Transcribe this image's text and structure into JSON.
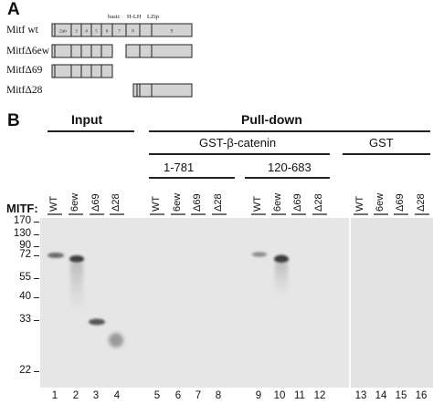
{
  "panel_a": {
    "letter": "A",
    "domain_labels": [
      "basic",
      "H-LH",
      "LZip"
    ],
    "segment_labels": [
      "2ab",
      "3",
      "4",
      "5",
      "6",
      "7",
      "8",
      "9"
    ],
    "constructs": [
      {
        "label": "Mitf wt"
      },
      {
        "label": "MitfΔ6ew"
      },
      {
        "label": "MitfΔ69"
      },
      {
        "label": "MitfΔ28"
      }
    ]
  },
  "panel_b": {
    "letter": "B",
    "input_label": "Input",
    "pulldown_label": "Pull-down",
    "gst_beta_catenin_label": "GST-β-catenin",
    "gst_label": "GST",
    "subgroup_1": "1-781",
    "subgroup_2": "120-683",
    "row_label": "MITF:",
    "lane_labels": [
      "WT",
      "6ew",
      "Δ69",
      "Δ28",
      "WT",
      "6ew",
      "Δ69",
      "Δ28",
      "WT",
      "6ew",
      "Δ69",
      "Δ28",
      "WT",
      "6ew",
      "Δ69",
      "Δ28"
    ],
    "lane_numbers": [
      "1",
      "2",
      "3",
      "4",
      "5",
      "6",
      "7",
      "8",
      "9",
      "10",
      "11",
      "12",
      "13",
      "14",
      "15",
      "16"
    ],
    "mw_markers": [
      "170",
      "130",
      "90",
      "72",
      "55",
      "40",
      "33",
      "22"
    ]
  }
}
